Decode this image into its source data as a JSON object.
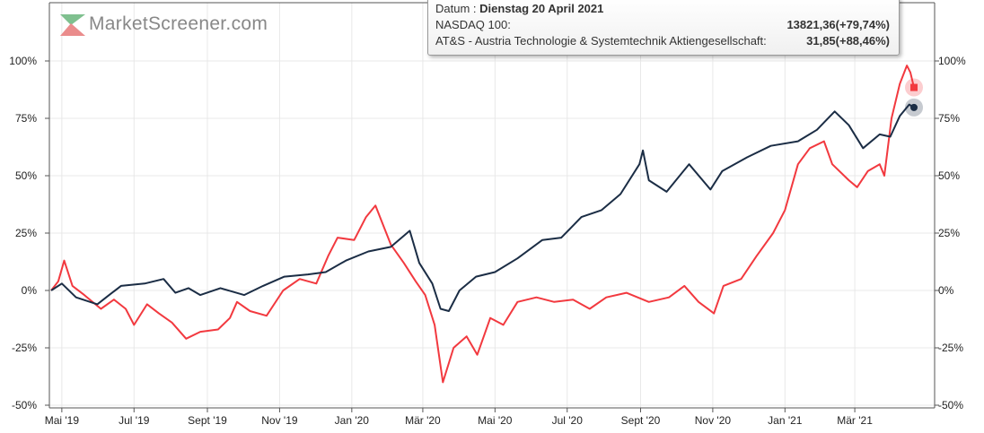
{
  "logo_text": "MarketScreener.com",
  "tooltip": {
    "date_label": "Datum : ",
    "date": "Dienstag 20 April 2021",
    "rows": [
      {
        "label": "NASDAQ 100:",
        "value": "13821,36(+79,74%)"
      },
      {
        "label": "AT&S - Austria Technologie & Systemtechnik Aktiengesellschaft:",
        "value": "31,85(+88,46%)"
      }
    ]
  },
  "chart_data": {
    "type": "line",
    "ylim": [
      -50,
      110
    ],
    "y_ticks": [
      -50,
      -25,
      0,
      25,
      50,
      75,
      100
    ],
    "y_tick_labels": [
      "-50%",
      "-25%",
      "0%",
      "25%",
      "50%",
      "75%",
      "100%"
    ],
    "x_range": [
      "2019-04-22",
      "2021-04-20"
    ],
    "x_ticks": [
      [
        "2019-05-01",
        "Mai '19"
      ],
      [
        "2019-07-01",
        "Jul '19"
      ],
      [
        "2019-09-01",
        "Sept '19"
      ],
      [
        "2019-11-01",
        "Nov '19"
      ],
      [
        "2020-01-01",
        "Jan '20"
      ],
      [
        "2020-03-01",
        "Mär '20"
      ],
      [
        "2020-05-01",
        "Mai '20"
      ],
      [
        "2020-07-01",
        "Jul '20"
      ],
      [
        "2020-09-01",
        "Sept '20"
      ],
      [
        "2020-11-01",
        "Nov '20"
      ],
      [
        "2021-01-01",
        "Jan '21"
      ],
      [
        "2021-03-01",
        "Mär '21"
      ]
    ],
    "grid": true,
    "series": [
      {
        "name": "NASDAQ 100",
        "color": "#1b2d45",
        "points": [
          [
            "2019-04-22",
            0
          ],
          [
            "2019-05-01",
            3
          ],
          [
            "2019-05-13",
            -3
          ],
          [
            "2019-05-31",
            -6
          ],
          [
            "2019-06-10",
            -2
          ],
          [
            "2019-06-20",
            2
          ],
          [
            "2019-07-10",
            3
          ],
          [
            "2019-07-26",
            5
          ],
          [
            "2019-08-05",
            -1
          ],
          [
            "2019-08-16",
            1
          ],
          [
            "2019-08-26",
            -2
          ],
          [
            "2019-09-12",
            1
          ],
          [
            "2019-10-02",
            -2
          ],
          [
            "2019-10-18",
            2
          ],
          [
            "2019-11-05",
            6
          ],
          [
            "2019-11-25",
            7
          ],
          [
            "2019-12-10",
            8
          ],
          [
            "2019-12-27",
            13
          ],
          [
            "2020-01-15",
            17
          ],
          [
            "2020-02-03",
            19
          ],
          [
            "2020-02-19",
            26
          ],
          [
            "2020-02-27",
            12
          ],
          [
            "2020-03-09",
            3
          ],
          [
            "2020-03-16",
            -8
          ],
          [
            "2020-03-23",
            -9
          ],
          [
            "2020-04-01",
            0
          ],
          [
            "2020-04-15",
            6
          ],
          [
            "2020-05-01",
            8
          ],
          [
            "2020-05-20",
            14
          ],
          [
            "2020-06-10",
            22
          ],
          [
            "2020-06-26",
            23
          ],
          [
            "2020-07-13",
            32
          ],
          [
            "2020-07-30",
            35
          ],
          [
            "2020-08-15",
            42
          ],
          [
            "2020-08-31",
            55
          ],
          [
            "2020-09-03",
            61
          ],
          [
            "2020-09-08",
            48
          ],
          [
            "2020-09-23",
            43
          ],
          [
            "2020-10-12",
            55
          ],
          [
            "2020-10-30",
            44
          ],
          [
            "2020-11-09",
            52
          ],
          [
            "2020-11-30",
            58
          ],
          [
            "2020-12-20",
            63
          ],
          [
            "2021-01-12",
            65
          ],
          [
            "2021-01-28",
            70
          ],
          [
            "2021-02-12",
            78
          ],
          [
            "2021-02-24",
            72
          ],
          [
            "2021-03-08",
            62
          ],
          [
            "2021-03-22",
            68
          ],
          [
            "2021-03-31",
            67
          ],
          [
            "2021-04-08",
            76
          ],
          [
            "2021-04-16",
            81
          ],
          [
            "2021-04-20",
            79.74
          ]
        ]
      },
      {
        "name": "AT&S - Austria Technologie & Systemtechnik Aktiengesellschaft",
        "color": "#f2393f",
        "points": [
          [
            "2019-04-22",
            0
          ],
          [
            "2019-04-28",
            4
          ],
          [
            "2019-05-03",
            13
          ],
          [
            "2019-05-10",
            2
          ],
          [
            "2019-05-20",
            -2
          ],
          [
            "2019-06-03",
            -8
          ],
          [
            "2019-06-14",
            -4
          ],
          [
            "2019-06-24",
            -8
          ],
          [
            "2019-07-01",
            -15
          ],
          [
            "2019-07-12",
            -6
          ],
          [
            "2019-07-22",
            -10
          ],
          [
            "2019-08-02",
            -14
          ],
          [
            "2019-08-14",
            -21
          ],
          [
            "2019-08-26",
            -18
          ],
          [
            "2019-09-10",
            -17
          ],
          [
            "2019-09-20",
            -12
          ],
          [
            "2019-09-26",
            -5
          ],
          [
            "2019-10-07",
            -9
          ],
          [
            "2019-10-21",
            -11
          ],
          [
            "2019-11-04",
            0
          ],
          [
            "2019-11-18",
            5
          ],
          [
            "2019-12-02",
            3
          ],
          [
            "2019-12-12",
            15
          ],
          [
            "2019-12-20",
            23
          ],
          [
            "2020-01-03",
            22
          ],
          [
            "2020-01-13",
            32
          ],
          [
            "2020-01-21",
            37
          ],
          [
            "2020-02-03",
            20
          ],
          [
            "2020-02-14",
            12
          ],
          [
            "2020-02-24",
            4
          ],
          [
            "2020-03-03",
            -2
          ],
          [
            "2020-03-11",
            -15
          ],
          [
            "2020-03-18",
            -40
          ],
          [
            "2020-03-27",
            -25
          ],
          [
            "2020-04-07",
            -20
          ],
          [
            "2020-04-16",
            -28
          ],
          [
            "2020-04-27",
            -12
          ],
          [
            "2020-05-08",
            -15
          ],
          [
            "2020-05-20",
            -5
          ],
          [
            "2020-06-05",
            -3
          ],
          [
            "2020-06-20",
            -5
          ],
          [
            "2020-07-06",
            -4
          ],
          [
            "2020-07-20",
            -8
          ],
          [
            "2020-08-03",
            -3
          ],
          [
            "2020-08-20",
            -1
          ],
          [
            "2020-09-08",
            -5
          ],
          [
            "2020-09-25",
            -3
          ],
          [
            "2020-10-08",
            2
          ],
          [
            "2020-10-20",
            -5
          ],
          [
            "2020-11-02",
            -10
          ],
          [
            "2020-11-10",
            2
          ],
          [
            "2020-11-25",
            5
          ],
          [
            "2020-12-08",
            15
          ],
          [
            "2020-12-22",
            25
          ],
          [
            "2021-01-01",
            35
          ],
          [
            "2021-01-12",
            55
          ],
          [
            "2021-01-22",
            62
          ],
          [
            "2021-02-03",
            65
          ],
          [
            "2021-02-10",
            55
          ],
          [
            "2021-02-24",
            48
          ],
          [
            "2021-03-03",
            45
          ],
          [
            "2021-03-12",
            52
          ],
          [
            "2021-03-22",
            55
          ],
          [
            "2021-03-26",
            50
          ],
          [
            "2021-04-01",
            75
          ],
          [
            "2021-04-08",
            90
          ],
          [
            "2021-04-14",
            98
          ],
          [
            "2021-04-17",
            95
          ],
          [
            "2021-04-20",
            88.46
          ]
        ]
      }
    ]
  }
}
